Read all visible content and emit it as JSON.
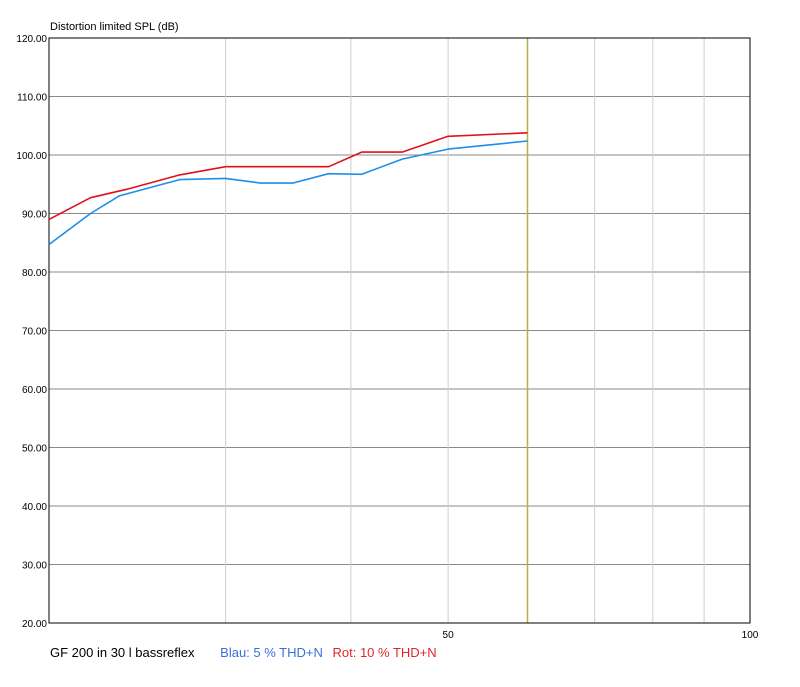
{
  "chart_data": {
    "type": "line",
    "title": "Distortion limited SPL (dB)",
    "x_scale": "log",
    "xlim": [
      20,
      100
    ],
    "ylim": [
      20,
      120
    ],
    "y_ticks": [
      "20.00",
      "30.00",
      "40.00",
      "50.00",
      "60.00",
      "70.00",
      "80.00",
      "90.00",
      "100.00",
      "110.00",
      "120.00"
    ],
    "y_tick_values": [
      20,
      30,
      40,
      50,
      60,
      70,
      80,
      90,
      100,
      110,
      120
    ],
    "x_ticks": [
      "50",
      "100"
    ],
    "x_tick_values": [
      50,
      100
    ],
    "x_grid": [
      30,
      40,
      50,
      60,
      70,
      80,
      90,
      100
    ],
    "marker_x": 60,
    "marker_color": "#b8b040",
    "grid": true,
    "series": [
      {
        "color": "#1e8ee8",
        "points": [
          [
            20,
            84.7
          ],
          [
            22,
            90.0
          ],
          [
            23.5,
            93.0
          ],
          [
            27,
            95.8
          ],
          [
            30,
            96.0
          ],
          [
            32.5,
            95.2
          ],
          [
            35,
            95.2
          ],
          [
            38,
            96.8
          ],
          [
            41,
            96.7
          ],
          [
            45,
            99.3
          ],
          [
            50,
            101.0
          ],
          [
            60,
            102.4
          ]
        ]
      },
      {
        "color": "#e0101e",
        "points": [
          [
            20,
            89.0
          ],
          [
            22,
            92.7
          ],
          [
            24,
            94.2
          ],
          [
            27,
            96.6
          ],
          [
            30,
            98.0
          ],
          [
            35,
            98.0
          ],
          [
            38,
            98.0
          ],
          [
            41,
            100.5
          ],
          [
            45,
            100.5
          ],
          [
            50,
            103.2
          ],
          [
            60,
            103.8
          ]
        ]
      }
    ]
  },
  "caption": {
    "title": "GF 200 in 30 l bassreflex",
    "blue": "Blau: 5 % THD+N",
    "red": "Rot: 10 % THD+N"
  }
}
